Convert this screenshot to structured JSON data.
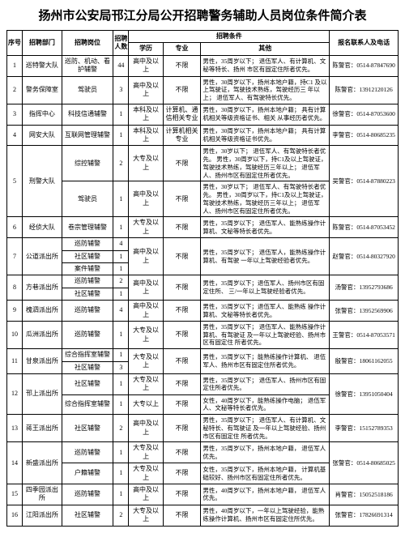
{
  "title": "扬州市公安局邗江分局公开招聘警务辅助人员岗位条件简介表",
  "headers": {
    "seq": "序号",
    "dept": "招聘部门",
    "pos": "招聘岗位",
    "num": "招聘人数",
    "cond": "招聘条件",
    "edu": "学历",
    "major": "专业",
    "other": "其他",
    "contact": "报名联系人及电话"
  },
  "rows": [
    {
      "seq": "1",
      "dept": "巡特警大队",
      "pos": "巡防、机动、看护辅警",
      "num": "44",
      "edu": "高中及以上",
      "major": "不限",
      "other": "男性，35周岁以下；\n退伍军人、有计算机、文秘等特长、扬州 市区有固定住所者优先。",
      "contact": "陈警官：0514-87847690"
    },
    {
      "seq": "2",
      "dept": "警务保障室",
      "pos": "驾驶员",
      "num": "3",
      "edu": "高中及以上",
      "major": "不限",
      "other": "男性，30周岁以下，扬州本地户籍，持C1 及以上驾驶证，驾驶技术熟练，驾驶经历三 年以上；\n退伍军人、有驾驶特长优先。",
      "contact": "陈警官：13912120126"
    },
    {
      "seq": "3",
      "dept": "指挥中心",
      "pos": "科技信通辅警",
      "num": "1",
      "edu": "本科及以上",
      "major": "计算机、通信相关专业",
      "other": "男性，30周岁以下，扬州本地户籍；\n具有计算机相关等级资格证书、相关 从事经历者优先。",
      "contact": "徐警官：0514-87053600"
    },
    {
      "seq": "4",
      "dept": "网安大队",
      "pos": "互联网管理辅警",
      "num": "1",
      "edu": "本科及以上",
      "major": "计算机相关专业",
      "other": "男性，30周岁以下，扬州本地户籍；\n具有计算机相关等级资格证书优先。",
      "contact": "李警官：0514-80685235"
    },
    {
      "seq": "5",
      "dept": "刑警大队",
      "pos": [
        {
          "p": "综控辅警",
          "n": "2",
          "e": "大专及以上",
          "m": "不限"
        },
        {
          "p": "驾驶员",
          "n": "1",
          "e": "高中及以上",
          "m": "不限"
        }
      ],
      "other": "男性，30岁以下；\n退伍军人、有驾驶特长者优先。\n男性，30周岁以下，持C1及以上驾驶证，驾驶技术熟练，驾驶经历三年以上；\n退伍军人、扬州市区有固定住所者优先。",
      "contact": "吴警官：0514-87880223"
    },
    {
      "seq": "6",
      "dept": "经侦大队",
      "pos": "卷宗管理辅警",
      "num": "1",
      "edu": "大专及以上",
      "major": "不限",
      "other": "男性，35周岁以下；\n退伍军人、能熟练操作计算机、文秘等特长者优先。",
      "contact": "陈警官：0514-87053452"
    },
    {
      "seq": "7",
      "dept": "公道派出所",
      "pos": [
        {
          "p": "巡防辅警",
          "n": "4"
        },
        {
          "p": "社区辅警",
          "n": "1"
        },
        {
          "p": "案件辅警",
          "n": "1"
        }
      ],
      "num_total": "",
      "edu": "高中及以上",
      "major": "不限",
      "other": "男性，35周岁以下；\n退伍军人，能熟练操作计算机、有驾驶 一年以上驾驶经验者优先。",
      "contact": "赵警官：0514-80327920"
    },
    {
      "seq": "8",
      "dept": "方巷派出所",
      "pos": [
        {
          "p": "巡防辅警",
          "n": "2"
        },
        {
          "p": "社区辅警",
          "n": "1"
        }
      ],
      "edu": "高中及以上",
      "major": "不限",
      "other": "男性，35周岁以下；退伍军人、扬州市区有固定住所、 三/一年以上驾驶经验者优先。",
      "contact": "汤警官：13952793686"
    },
    {
      "seq": "9",
      "dept": "槐泗派出所",
      "pos": "巡防辅警",
      "num": "4",
      "edu": "高中及以上",
      "major": "不限",
      "other": "男性，35周岁以下；退伍军人、能熟练 操作计算机、文秘等特长者优先。",
      "contact": "张警官：13952569906"
    },
    {
      "seq": "10",
      "dept": "瓜洲派出所",
      "pos": "巡防辅警",
      "num": "1",
      "edu": "大专及以上",
      "major": "不限",
      "other": "男性，35周岁以下；\n退伍军人、能熟练操作计算机、有驾驶证 及一年以上驾驶经验、扬州市区有固定住 所者优先。",
      "contact": "王警官：0514-87053571"
    },
    {
      "seq": "11",
      "dept": "甘泉派出所",
      "pos": [
        {
          "p": "综合指挥室辅警",
          "n": "1"
        },
        {
          "p": "社区辅警",
          "n": "3"
        }
      ],
      "edu": "大专及以上",
      "major": "不限",
      "other": "男性，35周岁以下；能熟练操作计算机、 退伍军人、扬州市区有固定住所者优先。",
      "contact": "殷警官：18061162055"
    },
    {
      "seq": "12",
      "dept": "邗上派出所",
      "pos": [
        {
          "p": "社区辅警",
          "n": "1",
          "e": "大专及以上",
          "m": "不限",
          "o": "男性，35周岁以下；\n退伍军人、扬州市区有固定住所者优先。"
        },
        {
          "p": "综合指挥室辅警",
          "n": "1",
          "e": "大专以上",
          "m": "不限",
          "o": "女性，40周岁以下，能熟练操作电脑；\n退伍军人、文秘等特长者优先。"
        }
      ],
      "contact": "徐警官：13951050404"
    },
    {
      "seq": "13",
      "dept": "蒋王派出所",
      "pos": "社区辅警",
      "num": "2",
      "edu": "高中及以上",
      "major": "不限",
      "other": "男性，35周岁以下；\n退伍军人、有计算机、文秘特长、有驾驶证 及一年以上驾驶经验、扬州市区有固定住 所者优先。",
      "contact": "李警官：15152789353"
    },
    {
      "seq": "14",
      "dept": "新盛派出所",
      "pos": [
        {
          "p": "巡防辅警",
          "n": "1",
          "e": "大专及以上",
          "m": "不限",
          "o": "男性，35周岁以下，扬州本地户籍，\n退伍军人优先。"
        },
        {
          "p": "户籍辅警",
          "n": "1",
          "e": "大专及以上",
          "m": "不限",
          "o": "女性，35周岁以下，扬州本地户籍，\n计算机基础较好、扬州市区有固定住所者优先。"
        }
      ],
      "contact": "张警官：0514-80685025"
    },
    {
      "seq": "15",
      "dept": "四季园派出所",
      "pos": "巡防辅警",
      "num": "1",
      "edu": "高中及以上",
      "major": "不限",
      "other": "男性，40周岁以下，扬州本地户籍，\n退伍军人优先。",
      "contact": "肖警官：15052518186"
    },
    {
      "seq": "16",
      "dept": "江阳派出所",
      "pos": "社区辅警",
      "num": "2",
      "edu": "大专及以上",
      "major": "不限",
      "other": "男性，40周岁以下，一年以上驾驶经验，能熟练操作计算机、扬州市区有固定住所优先。",
      "contact": "张警官：17826691314"
    }
  ],
  "colors": {
    "border": "#000000",
    "text": "#000000",
    "background": "#ffffff"
  }
}
